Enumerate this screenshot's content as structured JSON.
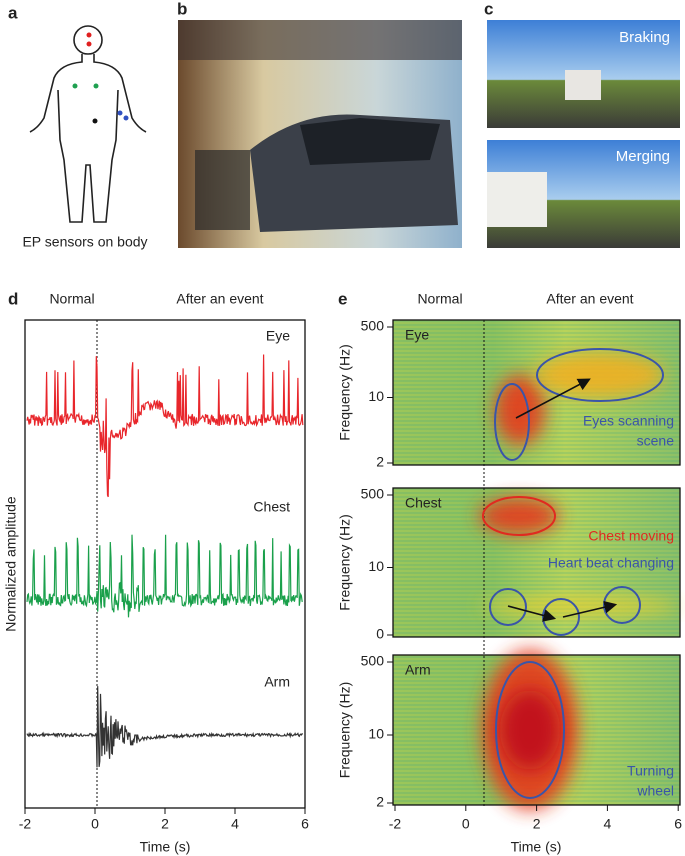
{
  "panel_a": {
    "label": "a",
    "caption": "EP sensors on body"
  },
  "panel_b": {
    "label": "b"
  },
  "panel_c": {
    "label": "c",
    "scenes": [
      "Braking",
      "Merging"
    ]
  },
  "panel_d": {
    "label": "d",
    "phase_labels": [
      "Normal",
      "After an event"
    ],
    "traces": [
      "Eye",
      "Chest",
      "Arm"
    ],
    "y_label": "Normalized amplitude",
    "x_ticks": [
      -2,
      0,
      2,
      4,
      6
    ],
    "x_label": "Time (s)"
  },
  "panel_e": {
    "label": "e",
    "phase_labels": [
      "Normal",
      "After an event"
    ],
    "plots": [
      {
        "name": "Eye",
        "y_label": "Frequency (Hz)",
        "y_ticks": [
          500,
          10,
          2
        ],
        "annotations": [
          "Eyes scanning",
          "scene"
        ]
      },
      {
        "name": "Chest",
        "y_label": "Frequency (Hz)",
        "y_ticks": [
          500,
          10,
          0
        ],
        "annotations": [
          "Chest moving",
          "Heart beat changing"
        ]
      },
      {
        "name": "Arm",
        "y_label": "Frequency (Hz)",
        "y_ticks": [
          500,
          10,
          2
        ],
        "annotations": [
          "Turning",
          "wheel"
        ]
      }
    ],
    "x_ticks": [
      -2,
      0,
      2,
      4,
      6
    ],
    "x_label": "Time (s)"
  }
}
